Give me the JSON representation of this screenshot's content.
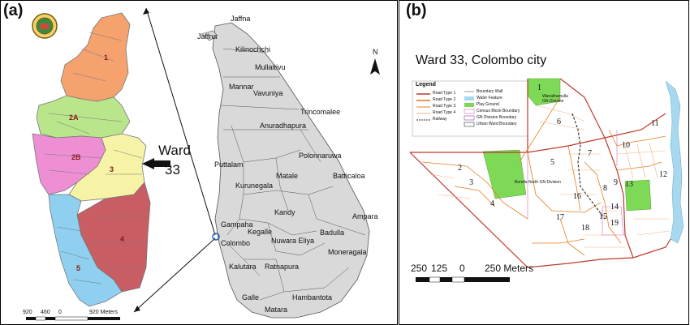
{
  "panel_a": {
    "label": "(a)",
    "ward_label": "Ward",
    "ward_number": "33",
    "colombo_zones": [
      "1",
      "2A",
      "2B",
      "3",
      "4",
      "5"
    ],
    "zone_colors": {
      "1": "#f5a26f",
      "2A": "#b9e58b",
      "2B": "#ee8fd4",
      "3": "#f6f3a6",
      "4": "#c85e63",
      "5": "#8fd0f0"
    },
    "scale_labels": [
      "920",
      "460",
      "0",
      "920 Meters"
    ],
    "srilanka_places": [
      "Jaffna",
      "Jaffna",
      "Kilinochchi",
      "Mullaitivu",
      "Mannar",
      "Vavuniya",
      "Trincomalee",
      "Anuradhapura",
      "Polonnaruwa",
      "Puttalam",
      "Matale",
      "Batticaloa",
      "Kurunegala",
      "Kandy",
      "Ampara",
      "Gampaha",
      "Kegalle",
      "Badulla",
      "Colombo",
      "Nuwara Eliya",
      "Moneragala",
      "Kalutara",
      "Ratnapura",
      "Galle",
      "Hambantota",
      "Matara"
    ],
    "north_label": "N",
    "map_fill": "#d9d9d9"
  },
  "panel_b": {
    "label": "(b)",
    "title": "Ward 33, Colombo city",
    "legend_title": "Legend",
    "legend_left": [
      "Road Type 1",
      "Road Type 2",
      "Road Type 3",
      "Road Type 4",
      "Railway"
    ],
    "legend_right": [
      "Boundary Wall",
      "Water Feature",
      "Play Ground",
      "Census Block Boundary",
      "GN Division Boundary",
      "Urban Ward Boundary"
    ],
    "map_labels": [
      "Wanathamulla GN Division",
      "Borella North GN Division"
    ],
    "block_numbers": [
      "1",
      "2",
      "3",
      "4",
      "5",
      "6",
      "7",
      "8",
      "9",
      "10",
      "11",
      "12",
      "13",
      "14",
      "15",
      "16",
      "17",
      "18",
      "19"
    ],
    "scale_labels": [
      "250",
      "125",
      "0",
      "250 Meters"
    ],
    "water_color": "#a8d8ee",
    "playground_color": "#7ed957"
  }
}
